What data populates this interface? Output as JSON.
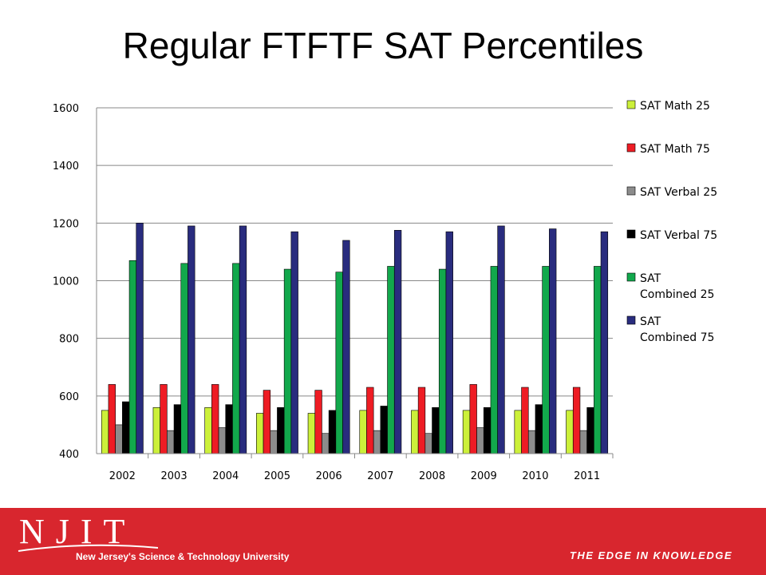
{
  "slide": {
    "title": "Regular FTFTF SAT Percentiles"
  },
  "chart_data": {
    "type": "bar",
    "title": "",
    "xlabel": "",
    "ylabel": "",
    "ylim": [
      400,
      1600
    ],
    "yticks": [
      400,
      600,
      800,
      1000,
      1200,
      1400,
      1600
    ],
    "categories": [
      "2002",
      "2003",
      "2004",
      "2005",
      "2006",
      "2007",
      "2008",
      "2009",
      "2010",
      "2011"
    ],
    "series": [
      {
        "name": "SAT Math 25",
        "color": "#ccf03a",
        "values": [
          550,
          560,
          560,
          540,
          540,
          550,
          550,
          550,
          550,
          550
        ]
      },
      {
        "name": "SAT Math 75",
        "color": "#ee1c24",
        "values": [
          640,
          640,
          640,
          620,
          620,
          630,
          630,
          640,
          630,
          630
        ]
      },
      {
        "name": "SAT Verbal 25",
        "color": "#8c8c8c",
        "values": [
          500,
          480,
          490,
          480,
          470,
          480,
          470,
          490,
          480,
          480
        ]
      },
      {
        "name": "SAT Verbal 75",
        "color": "#000000",
        "values": [
          580,
          570,
          570,
          560,
          550,
          565,
          560,
          560,
          570,
          560
        ]
      },
      {
        "name": "SAT Combined 25",
        "color": "#12a84c",
        "values": [
          1070,
          1060,
          1060,
          1040,
          1030,
          1050,
          1040,
          1050,
          1050,
          1050
        ]
      },
      {
        "name": "SAT Combined 75",
        "color": "#292c7e",
        "values": [
          1200,
          1190,
          1190,
          1170,
          1140,
          1175,
          1170,
          1190,
          1180,
          1170
        ]
      }
    ],
    "legend": {
      "position": "right",
      "lines": [
        [
          "SAT Math 25"
        ],
        [
          "SAT Math 75"
        ],
        [
          "SAT Verbal 25"
        ],
        [
          "SAT Verbal 75"
        ],
        [
          "SAT",
          "Combined 25"
        ],
        [
          "SAT",
          "Combined 75"
        ]
      ]
    },
    "grid": true
  },
  "footer": {
    "logo_text": "NJIT",
    "logo_subtitle": "New Jersey's Science & Technology University",
    "tagline": "THE EDGE IN KNOWLEDGE",
    "bg_color": "#d8262e"
  }
}
